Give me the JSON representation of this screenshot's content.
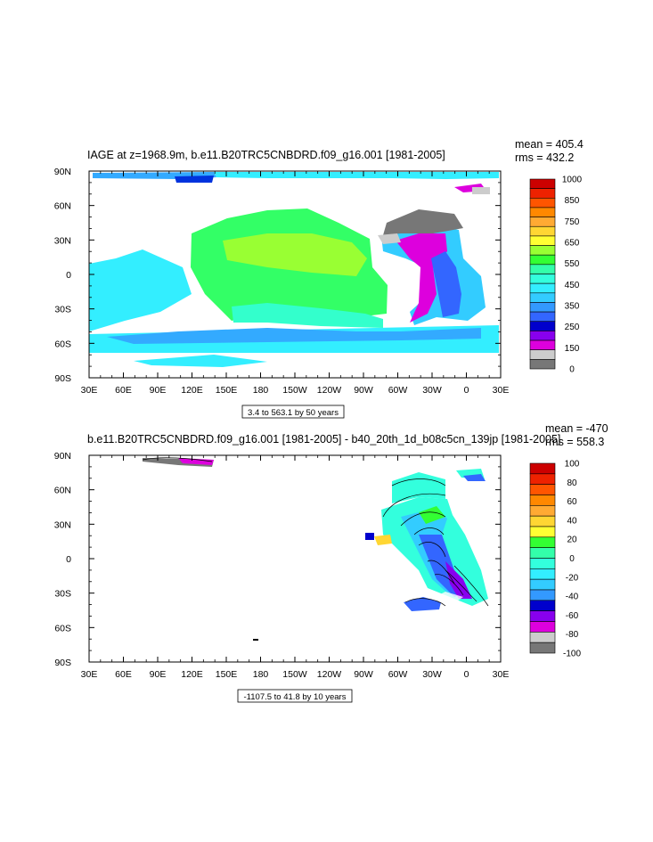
{
  "chart_data": [
    {
      "type": "heatmap",
      "title": "IAGE at z=1968.9m, b.e11.B20TRC5CNBDRD.f09_g16.001 [1981-2005]",
      "stats": [
        "mean = 405.4",
        "rms = 432.2"
      ],
      "x_ticks": [
        "30E",
        "60E",
        "90E",
        "120E",
        "150E",
        "180",
        "150W",
        "120W",
        "90W",
        "60W",
        "30W",
        "0",
        "30E"
      ],
      "y_ticks": [
        "90N",
        "60N",
        "30N",
        "0",
        "30S",
        "60S",
        "90S"
      ],
      "xlim": [
        30,
        390
      ],
      "ylim": [
        -90,
        90
      ],
      "contour_info": "3.4 to 563.1 by 50 years",
      "colorbar": {
        "labels": [
          "1000",
          "850",
          "750",
          "650",
          "550",
          "450",
          "350",
          "250",
          "150",
          "0"
        ],
        "colors": [
          "#cc0000",
          "#ee2200",
          "#ff5500",
          "#ff8800",
          "#ffaa33",
          "#ffd633",
          "#ffff33",
          "#99ff33",
          "#33ff33",
          "#33ffaa",
          "#33ffdd",
          "#33eeff",
          "#33ccff",
          "#3399ff",
          "#3366ff",
          "#0000cc",
          "#8800ee",
          "#dd00dd",
          "#cccccc",
          "#777777"
        ]
      }
    },
    {
      "type": "heatmap",
      "title": "b.e11.B20TRC5CNBDRD.f09_g16.001 [1981-2005] - b40_20th_1d_b08c5cn_139jp [1981-2005]",
      "stats": [
        "mean = -470",
        "rms = 558.3"
      ],
      "x_ticks": [
        "30E",
        "60E",
        "90E",
        "120E",
        "150E",
        "180",
        "150W",
        "120W",
        "90W",
        "60W",
        "30W",
        "0",
        "30E"
      ],
      "y_ticks": [
        "90N",
        "60N",
        "30N",
        "0",
        "30S",
        "60S",
        "90S"
      ],
      "xlim": [
        30,
        390
      ],
      "ylim": [
        -90,
        90
      ],
      "contour_info": "-1107.5 to 41.8 by 10 years",
      "colorbar": {
        "labels": [
          "100",
          "80",
          "60",
          "40",
          "20",
          "0",
          "-20",
          "-40",
          "-60",
          "-80",
          "-100"
        ],
        "colors": [
          "#cc0000",
          "#ee2200",
          "#ff5500",
          "#ff8800",
          "#ffaa33",
          "#ffd633",
          "#ffff33",
          "#33ff33",
          "#33ffaa",
          "#33ffdd",
          "#33eeff",
          "#33ccff",
          "#3399ff",
          "#0000cc",
          "#8800ee",
          "#dd00dd",
          "#cccccc",
          "#777777"
        ]
      }
    }
  ]
}
